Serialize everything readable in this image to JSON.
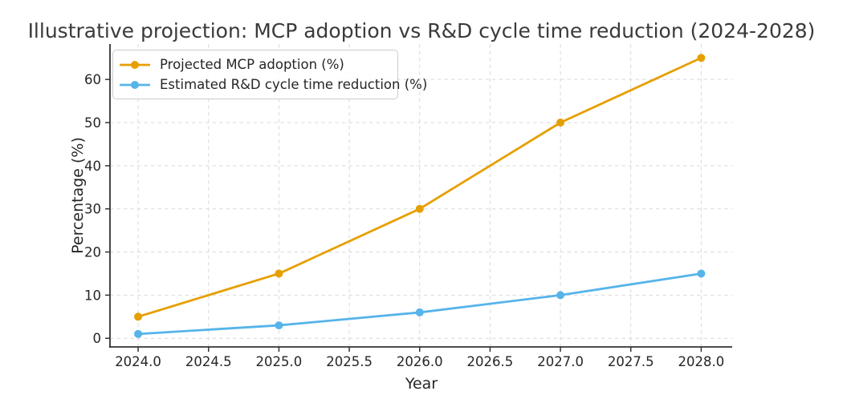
{
  "figure": {
    "background": "#ffffff",
    "text_color": "#262626",
    "title_color": "#3a3a3a",
    "spine_color": "#333333",
    "grid_color": "#d9d9d9"
  },
  "chart_data": {
    "type": "line",
    "title": "Illustrative projection: MCP adoption vs R&D cycle time reduction (2024-2028)",
    "xlabel": "Year",
    "ylabel": "Percentage (%)",
    "x": [
      2024,
      2025,
      2026,
      2027,
      2028
    ],
    "series": [
      {
        "name": "Projected MCP adoption (%)",
        "color": "#E69F00",
        "marker": "circle",
        "values": [
          5,
          15,
          30,
          50,
          65
        ]
      },
      {
        "name": "Estimated R&D cycle time reduction (%)",
        "color": "#56B4E9",
        "marker": "circle",
        "values": [
          1,
          3,
          6,
          10,
          15
        ]
      }
    ],
    "xlim": [
      2023.8,
      2028.22
    ],
    "ylim": [
      -2,
      68.2
    ],
    "x_ticks": [
      2024.0,
      2024.5,
      2025.0,
      2025.5,
      2026.0,
      2026.5,
      2027.0,
      2027.5,
      2028.0
    ],
    "x_tick_labels": [
      "2024.0",
      "2024.5",
      "2025.0",
      "2025.5",
      "2026.0",
      "2026.5",
      "2027.0",
      "2027.5",
      "2028.0"
    ],
    "y_ticks": [
      0,
      10,
      20,
      30,
      40,
      50,
      60
    ],
    "y_tick_labels": [
      "0",
      "10",
      "20",
      "30",
      "40",
      "50",
      "60"
    ],
    "grid": true,
    "grid_style": "dashed",
    "legend_position": "upper left",
    "spines_visible": [
      "left",
      "bottom"
    ]
  }
}
